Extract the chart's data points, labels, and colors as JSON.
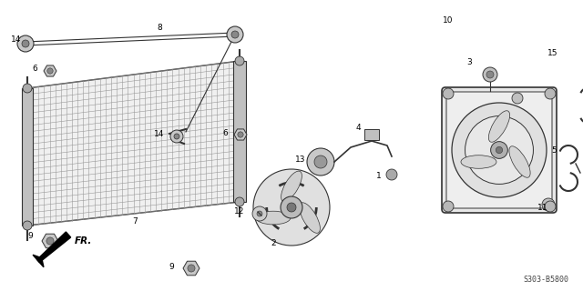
{
  "bg_color": "#ffffff",
  "diagram_code": "S303-B5800",
  "fr_label": "FR.",
  "dgray": "#333333",
  "lgray": "#888888",
  "mgray": "#aaaaaa",
  "font_size": 6.5
}
